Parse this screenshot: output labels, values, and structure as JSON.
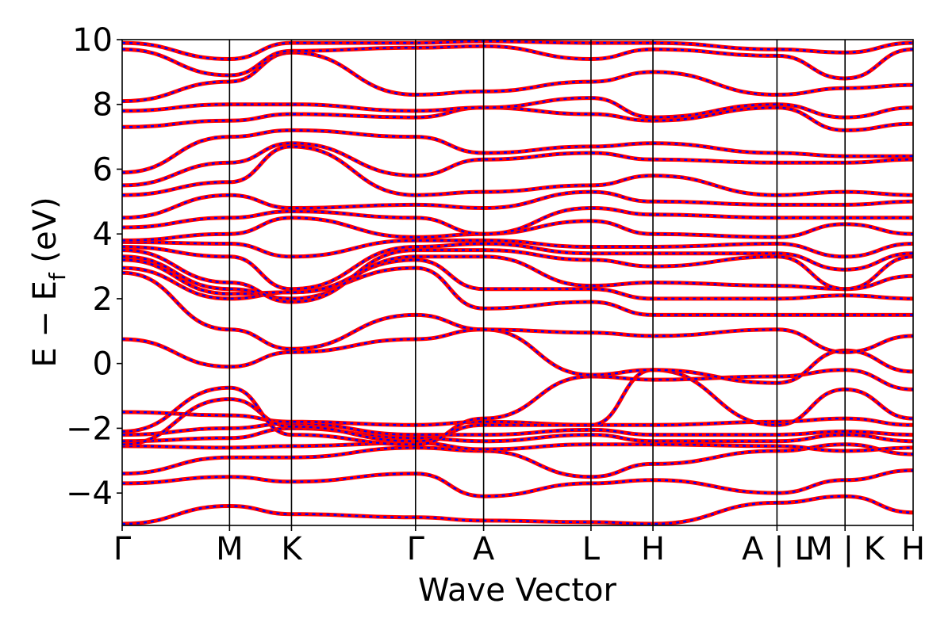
{
  "chart_data": {
    "type": "line",
    "title": "",
    "xlabel": "Wave Vector",
    "ylabel": "E − E_f (eV)",
    "ylabel_parts": {
      "main": "E − E",
      "subscript": "f",
      "unit": " (eV)"
    },
    "ylim": [
      -5,
      10
    ],
    "y_ticks": [
      -4,
      -2,
      0,
      2,
      4,
      6,
      8,
      10
    ],
    "y_tick_labels": [
      "−4",
      "−2",
      "0",
      "2",
      "4",
      "6",
      "8",
      "10"
    ],
    "grid": false,
    "legend": "none",
    "x_tick_labels": [
      "Γ",
      "M",
      "K",
      "Γ",
      "A",
      "L",
      "H",
      "A | L",
      "M | K",
      "H"
    ],
    "path_breaks": [
      "A | L",
      "M | K"
    ],
    "series_style": {
      "color": "#ff0000",
      "overlay_color": "#0000ff",
      "overlay_dash": "dashed"
    },
    "x_path": [
      0,
      1,
      1.577,
      2.732,
      3.366,
      4.366,
      4.943,
      6.098,
      6.732,
      7.366
    ],
    "series": [
      {
        "values": [
          -4.95,
          -4.4,
          -4.65,
          -4.75,
          -4.85,
          -4.9,
          -4.95,
          -4.3,
          -4.1,
          -4.6
        ]
      },
      {
        "values": [
          -3.7,
          -3.5,
          -3.65,
          -3.4,
          -4.1,
          -3.7,
          -3.6,
          -4.0,
          -3.6,
          -3.3
        ]
      },
      {
        "values": [
          -3.4,
          -2.9,
          -2.9,
          -2.6,
          -2.7,
          -3.5,
          -3.1,
          -2.7,
          -2.5,
          -2.8
        ]
      },
      {
        "values": [
          -2.55,
          -2.6,
          -2.55,
          -2.45,
          -2.65,
          -2.5,
          -2.5,
          -2.55,
          -2.7,
          -2.6
        ]
      },
      {
        "values": [
          -2.4,
          -2.3,
          -2.0,
          -2.3,
          -2.4,
          -2.2,
          -2.4,
          -2.4,
          -2.2,
          -2.4
        ]
      },
      {
        "values": [
          -2.2,
          -2.0,
          -1.85,
          -2.2,
          -2.2,
          -2.05,
          -2.2,
          -2.2,
          -2.1,
          -2.2
        ]
      },
      {
        "values": [
          -1.5,
          -1.6,
          -1.8,
          -1.9,
          -1.8,
          -1.9,
          -1.9,
          -1.8,
          -1.7,
          -1.9
        ]
      },
      {
        "values": [
          -2.5,
          -1.1,
          -1.95,
          -2.4,
          -1.9,
          -1.9,
          -0.2,
          -1.9,
          -0.8,
          -1.7
        ]
      },
      {
        "values": [
          -2.1,
          -0.75,
          -2.2,
          -2.5,
          -1.7,
          -0.4,
          -0.5,
          -0.4,
          -0.2,
          -0.8
        ]
      },
      {
        "values": [
          0.75,
          -0.1,
          0.35,
          0.75,
          1.05,
          -0.35,
          -0.2,
          -0.6,
          0.4,
          -0.25
        ]
      },
      {
        "values": [
          2.8,
          1.05,
          0.45,
          1.5,
          1.05,
          0.95,
          0.85,
          1.05,
          0.35,
          0.85
        ]
      },
      {
        "values": [
          2.95,
          2.0,
          2.2,
          2.95,
          1.7,
          1.9,
          1.5,
          1.5,
          1.5,
          1.5
        ]
      },
      {
        "values": [
          3.2,
          2.15,
          2.2,
          3.2,
          2.3,
          2.3,
          2.0,
          2.0,
          2.1,
          2.0
        ]
      },
      {
        "values": [
          3.3,
          2.3,
          2.0,
          3.3,
          3.3,
          2.4,
          2.5,
          2.4,
          2.3,
          2.7
        ]
      },
      {
        "values": [
          3.5,
          2.5,
          1.9,
          3.5,
          3.5,
          3.2,
          3.0,
          3.3,
          2.3,
          3.3
        ]
      },
      {
        "values": [
          3.6,
          3.3,
          2.3,
          3.6,
          3.7,
          3.4,
          3.4,
          3.4,
          2.9,
          3.4
        ]
      },
      {
        "values": [
          3.75,
          3.7,
          3.3,
          3.8,
          3.8,
          3.6,
          3.6,
          3.7,
          3.3,
          3.7
        ]
      },
      {
        "values": [
          3.8,
          4.0,
          4.5,
          3.9,
          4.0,
          4.4,
          4.0,
          3.9,
          4.3,
          4.0
        ]
      },
      {
        "values": [
          4.2,
          4.5,
          4.7,
          4.5,
          4.0,
          4.8,
          4.6,
          4.5,
          4.5,
          4.5
        ]
      },
      {
        "values": [
          4.5,
          5.2,
          4.8,
          4.9,
          4.8,
          5.3,
          5.0,
          4.9,
          4.9,
          5.0
        ]
      },
      {
        "values": [
          5.2,
          5.6,
          6.7,
          5.2,
          5.3,
          5.5,
          5.8,
          5.2,
          5.3,
          5.2
        ]
      },
      {
        "values": [
          5.5,
          6.2,
          6.8,
          5.8,
          6.3,
          6.5,
          6.3,
          6.2,
          6.2,
          6.3
        ]
      },
      {
        "values": [
          5.9,
          7.0,
          7.2,
          7.0,
          6.5,
          6.7,
          6.8,
          6.5,
          6.4,
          6.4
        ]
      },
      {
        "values": [
          7.3,
          7.5,
          7.7,
          7.6,
          7.9,
          7.7,
          7.5,
          7.9,
          7.2,
          7.4
        ]
      },
      {
        "values": [
          7.8,
          8.0,
          8.0,
          7.8,
          7.9,
          8.2,
          7.6,
          8.0,
          7.6,
          7.9
        ]
      },
      {
        "values": [
          8.1,
          8.7,
          9.6,
          8.3,
          8.4,
          8.7,
          9.0,
          8.3,
          8.5,
          8.6
        ]
      },
      {
        "values": [
          9.7,
          8.9,
          9.65,
          9.75,
          9.8,
          9.4,
          9.7,
          9.5,
          8.8,
          9.7
        ]
      },
      {
        "values": [
          9.9,
          9.4,
          9.9,
          9.9,
          9.95,
          9.9,
          9.9,
          9.7,
          9.6,
          9.9
        ]
      }
    ]
  }
}
